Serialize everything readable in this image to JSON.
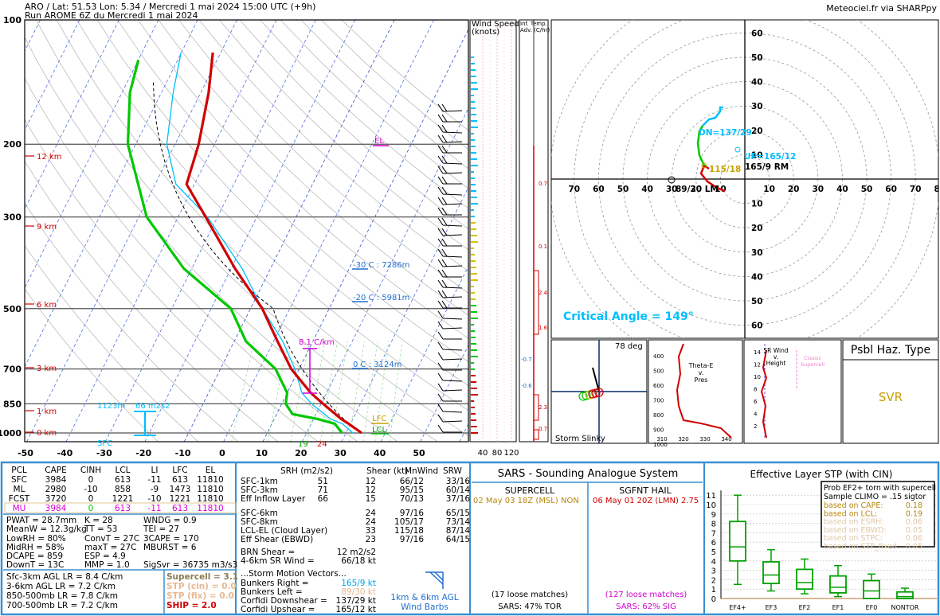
{
  "header": {
    "line1": "ARO / Lat: 51.53 Lon: 5.34 / Mercredi 1 mai 2024 15:00 UTC (+9h)",
    "line2": "Run AROME 6Z du Mercredi 1 mai 2024",
    "credit": "Meteociel.fr via SHARPpy"
  },
  "colors": {
    "temp": "#d00000",
    "dewpoint": "#00c800",
    "wetbulb": "#00bfff",
    "border": "#3a8fd0",
    "magenta": "#d000d0",
    "blue_label": "#1f6fd0",
    "gold": "#c8a000"
  },
  "chart_data": [
    {
      "type": "line",
      "name": "skew-t",
      "pressure_ticks": [
        "100",
        "200",
        "300",
        "500",
        "700",
        "850",
        "1000"
      ],
      "temp_ticks": [
        "-50",
        "-40",
        "-30",
        "-20",
        "-10",
        "0",
        "10",
        "20",
        "30",
        "40",
        "50"
      ],
      "height_labels": [
        "12 km",
        "9 km",
        "6 km",
        "3 km",
        "1 km",
        "0 km"
      ],
      "annotations": {
        "el": "EL",
        "lfc": "LFC",
        "lcl": "LCL",
        "sfc": "SFC",
        "m30": "-30 C : 7286m",
        "m20": "-20 C : 5981m",
        "zero": "0 C : 3124m",
        "lapse": "8.1 C/km",
        "srh_h": "1123m",
        "srh_v": "66 m2s2",
        "sfc_t": "24",
        "sfc_d": "19"
      },
      "temperature": [
        [
          1000,
          24
        ],
        [
          950,
          19.5
        ],
        [
          925,
          17
        ],
        [
          850,
          10.5
        ],
        [
          800,
          6
        ],
        [
          700,
          -2
        ],
        [
          600,
          -9
        ],
        [
          500,
          -17
        ],
        [
          400,
          -29
        ],
        [
          300,
          -43
        ],
        [
          250,
          -52
        ],
        [
          200,
          -54
        ],
        [
          150,
          -58
        ],
        [
          120,
          -62
        ]
      ],
      "dewpoint": [
        [
          1000,
          19
        ],
        [
          950,
          16
        ],
        [
          925,
          11
        ],
        [
          900,
          4
        ],
        [
          850,
          1
        ],
        [
          800,
          0
        ],
        [
          700,
          -6
        ],
        [
          600,
          -17
        ],
        [
          500,
          -25
        ],
        [
          400,
          -42
        ],
        [
          300,
          -58
        ],
        [
          200,
          -72
        ],
        [
          150,
          -78
        ],
        [
          125,
          -80
        ]
      ]
    },
    {
      "type": "bar",
      "name": "wind-speed",
      "title": "Wind Speed",
      "subtitle": "(knots)",
      "ticks": [
        "40",
        "80",
        "120"
      ]
    },
    {
      "type": "line",
      "name": "inferred-temp-advection",
      "title": "Inf. Temp.",
      "subtitle": "Adv. (C/hr)",
      "labels": [
        "0.7",
        "0.1",
        "2.4",
        "1.6",
        "-0.7",
        "-0.6",
        "2.3",
        "0.7"
      ]
    },
    {
      "type": "line",
      "name": "hodograph",
      "rings": [
        "10",
        "20",
        "30",
        "40",
        "50",
        "60"
      ],
      "x_ticks": [
        "70",
        "60",
        "50",
        "40",
        "30",
        "20",
        "10",
        "10",
        "20",
        "30",
        "40",
        "50",
        "60",
        "70",
        "80"
      ],
      "labels": {
        "dn": "DN=137/29",
        "up": "UP=165/12",
        "rm": "165/9 RM",
        "lm": "89/30 LM",
        "mean": "115/18",
        "critical": "Critical Angle = 149°"
      }
    },
    {
      "type": "line",
      "name": "storm-slinky",
      "label": "Storm Slinky",
      "deg": "78 deg"
    },
    {
      "type": "line",
      "name": "theta-e",
      "title": "Theta-E",
      "sub1": "v.",
      "sub2": "Pres",
      "y_ticks": [
        "400",
        "500",
        "600",
        "700",
        "800",
        "900",
        "1000"
      ],
      "x_ticks": [
        "310",
        "320",
        "330",
        "340"
      ]
    },
    {
      "type": "line",
      "name": "sr-wind",
      "title": "SR Wind",
      "sub1": "v.",
      "sub2": "Height",
      "y_ticks": [
        "14",
        "12",
        "10",
        "8",
        "6",
        "4",
        "2"
      ],
      "classic": "Classic",
      "supercell": "Supercell"
    },
    {
      "type": "box",
      "name": "effective-layer-stp",
      "title": "Effective Layer STP (with CIN)",
      "y_ticks": [
        "0",
        "1",
        "2",
        "3",
        "4",
        "5",
        "6",
        "7",
        "8",
        "9",
        "10",
        "11"
      ],
      "categories": [
        "EF4+",
        "EF3",
        "EF2",
        "EF1",
        "EF0",
        "NONTOR"
      ],
      "boxes": [
        [
          1.5,
          4,
          5.5,
          8.2,
          11
        ],
        [
          0.8,
          1.6,
          2.5,
          3.9,
          5.2
        ],
        [
          0.5,
          1,
          1.7,
          3.1,
          4.2
        ],
        [
          0.2,
          0.6,
          1.2,
          2.4,
          3.5
        ],
        [
          0,
          0,
          0.8,
          1.9,
          2.6
        ],
        [
          0,
          0,
          0.2,
          0.7,
          1.1
        ]
      ],
      "prob_title": "Prob EF2+ torn with supercell",
      "prob_sub": "Sample CLIMO = .15 sigtor",
      "prob_rows": [
        [
          "based on CAPE:",
          "0.18"
        ],
        [
          "based on LCL:",
          "0.19"
        ],
        [
          "based on ESRH:",
          "0.06"
        ],
        [
          "based on EBWD:",
          "0.05"
        ],
        [
          "based on STPC:",
          "0.06"
        ],
        [
          "based on STP_fixed:",
          "0.05"
        ]
      ]
    }
  ],
  "hazard": {
    "title": "Psbl Haz. Type",
    "value": "SVR"
  },
  "parcel_table": {
    "headers": [
      "PCL",
      "CAPE",
      "CINH",
      "LCL",
      "LI",
      "LFC",
      "EL"
    ],
    "rows": [
      [
        "SFC",
        "3984",
        "0",
        "613",
        "-11",
        "613",
        "11810"
      ],
      [
        "ML",
        "2980",
        "-10",
        "858",
        "-9",
        "1473",
        "11810"
      ],
      [
        "FCST",
        "3720",
        "0",
        "1221",
        "-10",
        "1221",
        "11810"
      ],
      [
        "MU",
        "3984",
        "0",
        "613",
        "-11",
        "613",
        "11810"
      ]
    ]
  },
  "indices": [
    [
      "PWAT = 28.7mm",
      "K = 28",
      "WNDG = 0.9"
    ],
    [
      "MeanW = 12.3g/kg",
      "TT = 53",
      "TEI = 27"
    ],
    [
      "LowRH = 80%",
      "ConvT = 27C",
      "3CAPE = 170"
    ],
    [
      "MidRH = 58%",
      "maxT = 27C",
      "MBURST = 6"
    ],
    [
      "DCAPE = 859",
      "ESP = 4.9",
      ""
    ],
    [
      "DownT = 13C",
      "MMP = 1.0",
      "SigSvr = 36735 m3/s3"
    ]
  ],
  "lapse_rates": [
    "Sfc-3km AGL LR = 8.4 C/km",
    "3-6km AGL LR = 7.2 C/km",
    "850-500mb LR = 7.8 C/km",
    "700-500mb LR = 7.2 C/km"
  ],
  "composites": [
    "Supercell = 3.1",
    "STP (cin) = 0.0",
    "STP (fix) = 0.0",
    "SHIP = 2.0"
  ],
  "kinematics": {
    "headers": [
      "SRH (m2/s2)",
      "Shear (kt)",
      "MnWind",
      "SRW"
    ],
    "rows1": [
      [
        "SFC-1km",
        "51",
        "12",
        "66/12",
        "33/16"
      ],
      [
        "SFC-3km",
        "71",
        "12",
        "95/15",
        "60/14"
      ],
      [
        "Eff Inflow Layer",
        "66",
        "15",
        "70/13",
        "37/16"
      ]
    ],
    "rows2": [
      [
        "SFC-6km",
        "",
        "24",
        "97/16",
        "65/15"
      ],
      [
        "SFC-8km",
        "",
        "24",
        "105/17",
        "73/14"
      ],
      [
        "LCL-EL (Cloud Layer)",
        "",
        "33",
        "115/18",
        "87/14"
      ],
      [
        "Eff Shear (EBWD)",
        "",
        "23",
        "97/16",
        "64/15"
      ]
    ],
    "brn": [
      [
        "BRN Shear =",
        "12 m2/s2"
      ],
      [
        "4-6km SR Wind =",
        "66/18 kt"
      ]
    ],
    "motion_title": "...Storm Motion Vectors...",
    "motion": [
      [
        "Bunkers Right =",
        "165/9 kt"
      ],
      [
        "Bunkers Left =",
        "89/30 kt"
      ],
      [
        "Corfidi Downshear =",
        "137/29 kt"
      ],
      [
        "Corfidi Upshear =",
        "165/12 kt"
      ]
    ],
    "barbs_label1": "1km & 6km AGL",
    "barbs_label2": "Wind Barbs"
  },
  "sars": {
    "title": "SARS - Sounding Analogue System",
    "supercell": "SUPERCELL",
    "hail": "SGFNT HAIL",
    "sup_match": "02 May 03 18Z (MSL)",
    "sup_type": "NON",
    "hail_match": "06 May 01 20Z (LMN)",
    "hail_size": "2.75",
    "sup_loose": "(17 loose matches)",
    "hail_loose": "(127 loose matches)",
    "sup_pct": "SARS: 47% TOR",
    "hail_pct": "SARS: 62% SIG"
  }
}
